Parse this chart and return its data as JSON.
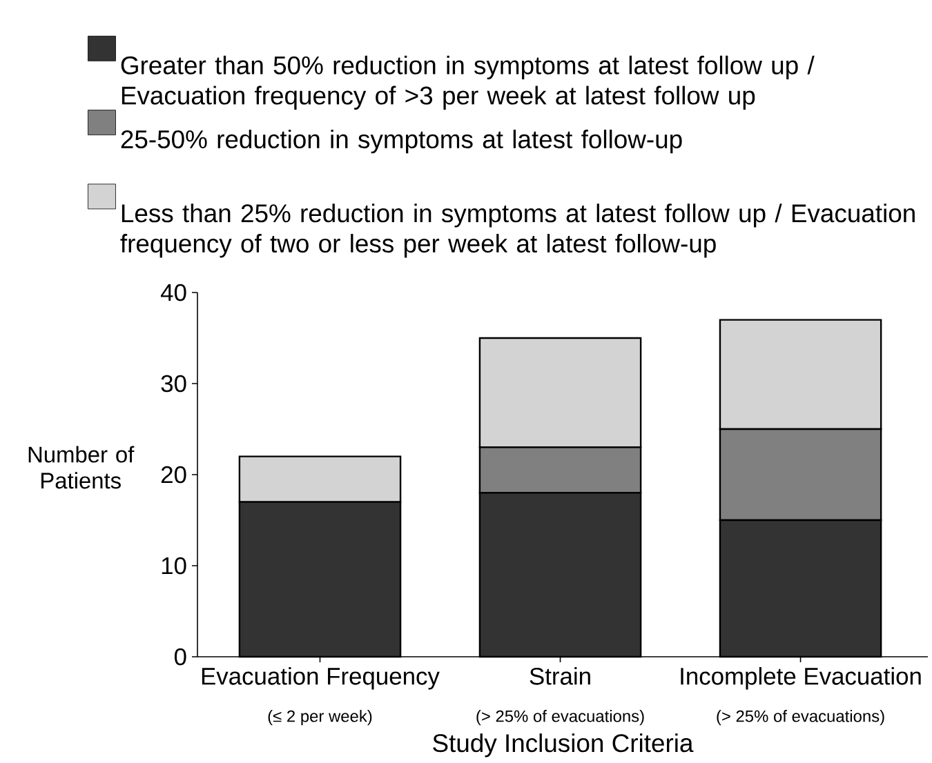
{
  "chart_data": {
    "type": "bar",
    "stacked": true,
    "xlabel": "Study Inclusion Criteria",
    "ylabel": "Number of Patients",
    "categories": [
      "Evacuation Frequency",
      "Strain",
      "Incomplete Evacuation"
    ],
    "annotations": [
      "(≤ 2 per week)",
      "(> 25% of evacuations)",
      "(> 25% of evacuations)"
    ],
    "series": [
      {
        "name": "Greater than 50% reduction in symptoms at latest follow up / Evacuation frequency of >3 per week at latest follow up",
        "color": "#333333",
        "values": [
          17,
          18,
          15
        ]
      },
      {
        "name": "25-50% reduction in symptoms at latest follow-up",
        "color": "#808080",
        "values": [
          0,
          5,
          10
        ]
      },
      {
        "name": "Less than 25% reduction in symptoms at latest follow up / Evacuation frequency of two or less per week at latest follow-up",
        "color": "#d3d3d3",
        "values": [
          5,
          12,
          12
        ]
      }
    ],
    "ylim": [
      0,
      40
    ],
    "yticks": [
      0,
      10,
      20,
      30,
      40
    ],
    "grid": false,
    "legend": "top"
  }
}
